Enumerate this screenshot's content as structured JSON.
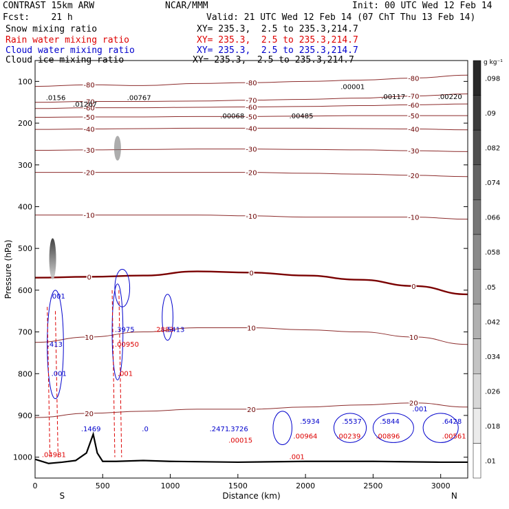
{
  "header": {
    "title_left": "CONTRAST 15km ARW",
    "title_center": "NCAR/MMM",
    "init": "Init: 00 UTC Wed 12 Feb 14",
    "fcst": "Fcst:    21 h",
    "valid": "Valid: 21 UTC Wed 12 Feb 14 (07 ChT Thu 13 Feb 14)"
  },
  "fields": [
    {
      "name": "Snow mixing ratio",
      "xy": "XY= 235.3,  2.5 to 235.3,214.7",
      "color": "#000000"
    },
    {
      "name": "Rain water mixing ratio",
      "xy": "XY= 235.3,  2.5 to 235.3,214.7",
      "color": "#dd0000"
    },
    {
      "name": "Cloud water mixing ratio",
      "xy": "XY= 235.3,  2.5 to 235.3,214.7",
      "color": "#0000cc"
    },
    {
      "name": "Cloud ice mixing ratio",
      "xy": "XY= 235.3,  2.5 to 235.3,214.7",
      "color": "#000000"
    }
  ],
  "colorbar": {
    "unit": "g kg⁻¹",
    "ticks": [
      ".098",
      ".09",
      ".082",
      ".074",
      ".066",
      ".058",
      ".05",
      ".042",
      ".034",
      ".026",
      ".018",
      ".01"
    ]
  },
  "chart_data": {
    "type": "cross-section",
    "xlabel": "Distance (km)",
    "ylabel": "Pressure (hPa)",
    "x_ticks": [
      0,
      500,
      1000,
      1500,
      2000,
      2500,
      3000
    ],
    "xlim": [
      0,
      3200
    ],
    "y_ticks": [
      100,
      200,
      300,
      400,
      500,
      600,
      700,
      800,
      900,
      1000
    ],
    "ylim": [
      1050,
      50
    ],
    "start_label": "S",
    "end_label": "N",
    "isotherms": [
      {
        "label": "-80",
        "p": [
          112,
          108,
          110,
          105,
          103,
          100,
          97,
          92,
          85
        ]
      },
      {
        "label": "-70",
        "p": [
          150,
          148,
          148,
          147,
          145,
          143,
          140,
          135,
          130
        ]
      },
      {
        "label": "-60",
        "p": [
          165,
          163,
          163,
          162,
          161,
          160,
          158,
          156,
          154
        ]
      },
      {
        "label": "-50",
        "p": [
          186,
          185,
          185,
          184,
          184,
          183,
          182,
          182,
          182
        ]
      },
      {
        "label": "-40",
        "p": [
          215,
          214,
          213,
          212,
          212,
          212,
          213,
          214,
          216
        ]
      },
      {
        "label": "-30",
        "p": [
          265,
          264,
          263,
          262,
          262,
          263,
          264,
          266,
          268
        ]
      },
      {
        "label": "-20",
        "p": [
          318,
          318,
          318,
          318,
          318,
          320,
          322,
          325,
          328
        ]
      },
      {
        "label": "-10",
        "p": [
          420,
          420,
          420,
          420,
          422,
          425,
          425,
          425,
          430
        ]
      },
      {
        "label": "0",
        "p": [
          570,
          568,
          565,
          555,
          558,
          565,
          575,
          590,
          610
        ]
      },
      {
        "label": "10",
        "p": [
          725,
          712,
          700,
          690,
          690,
          695,
          700,
          712,
          730
        ]
      },
      {
        "label": "20",
        "p": [
          905,
          895,
          890,
          885,
          885,
          880,
          875,
          870,
          880
        ]
      }
    ],
    "isotherm_x": [
      0,
      400,
      800,
      1200,
      1600,
      2000,
      2400,
      2800,
      3200
    ],
    "terrain": {
      "x": [
        0,
        100,
        200,
        300,
        380,
        430,
        460,
        500,
        600,
        800,
        1000,
        1500,
        2000,
        2500,
        3000,
        3200
      ],
      "p": [
        1005,
        1015,
        1012,
        1008,
        990,
        945,
        990,
        1010,
        1010,
        1008,
        1010,
        1012,
        1010,
        1010,
        1012,
        1012
      ]
    },
    "annotations": [
      {
        "x": 80,
        "p": 145,
        "text": ".0156",
        "color": "#000000"
      },
      {
        "x": 280,
        "p": 160,
        "text": ".01267",
        "color": "#000000"
      },
      {
        "x": 680,
        "p": 145,
        "text": ".00767",
        "color": "#000000"
      },
      {
        "x": 1370,
        "p": 188,
        "text": ".00068",
        "color": "#000000"
      },
      {
        "x": 1880,
        "p": 188,
        "text": ".00485",
        "color": "#000000"
      },
      {
        "x": 2260,
        "p": 118,
        "text": ".00001",
        "color": "#000000"
      },
      {
        "x": 2560,
        "p": 142,
        "text": ".00117",
        "color": "#000000"
      },
      {
        "x": 2980,
        "p": 142,
        "text": ".00220",
        "color": "#000000"
      },
      {
        "x": 50,
        "p": 1000,
        "text": ".04981",
        "color": "#dd0000"
      },
      {
        "x": 340,
        "p": 938,
        "text": ".1469",
        "color": "#0000cc"
      },
      {
        "x": 790,
        "p": 938,
        "text": ".0",
        "color": "#0000cc"
      },
      {
        "x": 1290,
        "p": 938,
        "text": ".2471",
        "color": "#0000cc"
      },
      {
        "x": 1430,
        "p": 938,
        "text": ".3726",
        "color": "#0000cc"
      },
      {
        "x": 1430,
        "p": 965,
        "text": ".00015",
        "color": "#dd0000"
      },
      {
        "x": 1910,
        "p": 955,
        "text": ".00964",
        "color": "#dd0000"
      },
      {
        "x": 2230,
        "p": 955,
        "text": ".00239",
        "color": "#dd0000"
      },
      {
        "x": 2520,
        "p": 955,
        "text": ".00896",
        "color": "#dd0000"
      },
      {
        "x": 3010,
        "p": 955,
        "text": ".00561",
        "color": "#dd0000"
      },
      {
        "x": 90,
        "p": 735,
        "text": ".413",
        "color": "#0000cc"
      },
      {
        "x": 590,
        "p": 700,
        "text": ".3975",
        "color": "#0000cc"
      },
      {
        "x": 590,
        "p": 735,
        "text": ".00950",
        "color": "#dd0000"
      },
      {
        "x": 880,
        "p": 700,
        "text": ".2883",
        "color": "#dd0000"
      },
      {
        "x": 960,
        "p": 700,
        "text": ".5413",
        "color": "#0000cc"
      },
      {
        "x": 120,
        "p": 805,
        "text": ".001",
        "color": "#0000cc"
      },
      {
        "x": 610,
        "p": 805,
        "text": ".001",
        "color": "#dd0000"
      },
      {
        "x": 110,
        "p": 620,
        "text": ".001",
        "color": "#0000cc"
      },
      {
        "x": 1960,
        "p": 920,
        "text": ".5934",
        "color": "#0000cc"
      },
      {
        "x": 2270,
        "p": 920,
        "text": ".5537",
        "color": "#0000cc"
      },
      {
        "x": 2550,
        "p": 920,
        "text": ".5844",
        "color": "#0000cc"
      },
      {
        "x": 3010,
        "p": 920,
        "text": ".6428",
        "color": "#0000cc"
      },
      {
        "x": 2790,
        "p": 890,
        "text": ".001",
        "color": "#0000cc"
      },
      {
        "x": 1880,
        "p": 1005,
        "text": ".001",
        "color": "#dd0000"
      }
    ]
  }
}
